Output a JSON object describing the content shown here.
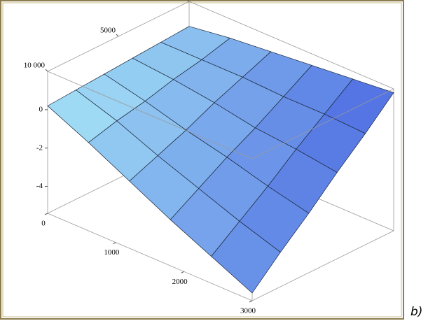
{
  "chart_data": {
    "type": "surface3d",
    "x": [
      0,
      600,
      1200,
      1800,
      2400,
      3000
    ],
    "y": [
      0,
      2000,
      4000,
      6000,
      8000,
      10000
    ],
    "z": [
      [
        0.7,
        1.0,
        1.2,
        1.4,
        1.6,
        1.8
      ],
      [
        0.6,
        0.6,
        0.6,
        0.5,
        0.5,
        0.4
      ],
      [
        0.5,
        0.3,
        0.0,
        -0.4,
        -0.6,
        -0.9
      ],
      [
        0.4,
        -0.1,
        -0.7,
        -1.2,
        -1.8,
        -2.3
      ],
      [
        0.3,
        -0.4,
        -1.3,
        -2.1,
        -2.9,
        -3.6
      ],
      [
        0.2,
        -0.8,
        -1.9,
        -3.0,
        -4.0,
        -5.0
      ]
    ],
    "xlim": [
      0,
      3000
    ],
    "ylim": [
      0,
      10000
    ],
    "zlim": [
      -5.4,
      2.0
    ],
    "xticks": [
      0,
      1000,
      2000,
      3000
    ],
    "yticks": [
      0,
      5000,
      {
        "value": 10000,
        "label": "10 000"
      }
    ],
    "zticks": [
      0,
      -2,
      -4
    ],
    "surface_colors": [
      "#a8e7f6",
      "#5374e3"
    ],
    "mesh_color": "#1b2638",
    "annotation": "b)"
  }
}
